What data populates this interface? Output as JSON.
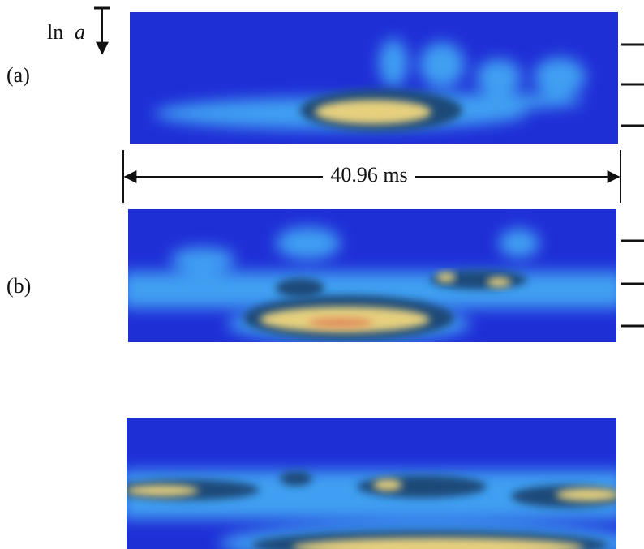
{
  "labels": {
    "ln": "ln",
    "a": "a",
    "panel_a": "(a)",
    "panel_b": "(b)",
    "duration": "40.96 ms"
  }
}
